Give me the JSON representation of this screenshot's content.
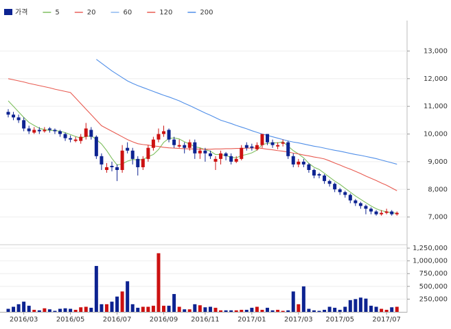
{
  "chart_data": {
    "type": "candlestick",
    "name": "가격",
    "up_color": "#cc1111",
    "down_color": "#0d2391",
    "legend": "top-left",
    "grid": true,
    "categories": [
      null,
      null,
      null,
      "2016/03",
      null,
      null,
      null,
      null,
      null,
      null,
      null,
      null,
      "2016/05",
      null,
      null,
      null,
      null,
      null,
      null,
      null,
      null,
      "2016/07",
      null,
      null,
      null,
      null,
      null,
      null,
      null,
      null,
      "2016/09",
      null,
      null,
      null,
      null,
      null,
      null,
      null,
      "2016/11",
      null,
      null,
      null,
      null,
      null,
      null,
      null,
      null,
      "2017/01",
      null,
      null,
      null,
      null,
      null,
      null,
      null,
      null,
      "2017/03",
      null,
      null,
      null,
      null,
      null,
      null,
      null,
      "2017/05",
      null,
      null,
      null,
      null,
      null,
      null,
      null,
      null,
      "2017/07",
      null,
      null
    ],
    "open": [
      10800,
      10700,
      10600,
      10500,
      10200,
      10050,
      10150,
      10100,
      10200,
      10150,
      10100,
      10000,
      9850,
      9750,
      9750,
      9900,
      10150,
      9900,
      9200,
      8700,
      8850,
      8800,
      8700,
      9500,
      9400,
      9100,
      8800,
      9100,
      9500,
      9800,
      10000,
      10150,
      9800,
      9550,
      9600,
      9500,
      9700,
      9300,
      9400,
      9300,
      9000,
      9100,
      9300,
      9200,
      9000,
      9100,
      9600,
      9550,
      9450,
      9600,
      10000,
      9700,
      9550,
      9650,
      9700,
      9200,
      8900,
      9000,
      8900,
      8700,
      8550,
      8500,
      8300,
      8200,
      8000,
      7900,
      7800,
      7600,
      7500,
      7400,
      7300,
      7200,
      7100,
      7150,
      7200,
      7100
    ],
    "high": [
      10900,
      10800,
      10700,
      10600,
      10300,
      10250,
      10250,
      10250,
      10250,
      10200,
      10150,
      10050,
      9950,
      9900,
      10000,
      10400,
      10250,
      9950,
      9300,
      8950,
      9000,
      8900,
      9600,
      9700,
      9500,
      9200,
      9200,
      9600,
      9900,
      10200,
      10300,
      10200,
      9900,
      9800,
      9700,
      9800,
      9800,
      9500,
      9500,
      9400,
      9200,
      9400,
      9350,
      9300,
      9200,
      9600,
      9700,
      9650,
      9700,
      10000,
      10000,
      9800,
      9700,
      9800,
      9750,
      9300,
      9100,
      9100,
      8950,
      8750,
      8600,
      8550,
      8350,
      8250,
      8050,
      7950,
      7850,
      7650,
      7550,
      7450,
      7350,
      7250,
      7250,
      7300,
      7250,
      7200
    ],
    "low": [
      10600,
      10500,
      10400,
      10100,
      10000,
      10000,
      10000,
      10050,
      10050,
      10000,
      9900,
      9750,
      9700,
      9700,
      9650,
      9800,
      9800,
      9100,
      8700,
      8600,
      8650,
      8300,
      8600,
      9300,
      8900,
      8500,
      8700,
      9000,
      9400,
      9700,
      9900,
      9700,
      9500,
      9500,
      9300,
      9400,
      9100,
      9100,
      9000,
      9100,
      8700,
      8900,
      9050,
      8900,
      8950,
      9050,
      9400,
      9400,
      9400,
      9500,
      9600,
      9500,
      9450,
      9550,
      9100,
      8800,
      8800,
      8800,
      8600,
      8400,
      8400,
      8200,
      8100,
      7900,
      7800,
      7700,
      7500,
      7400,
      7300,
      7100,
      7100,
      7050,
      7050,
      7100,
      7050,
      7050
    ],
    "close": [
      10700,
      10600,
      10500,
      10200,
      10100,
      10150,
      10100,
      10150,
      10150,
      10100,
      10000,
      9850,
      9800,
      9800,
      9900,
      10200,
      9900,
      9200,
      8900,
      8800,
      8800,
      8700,
      9400,
      9400,
      9100,
      8800,
      9100,
      9500,
      9800,
      10000,
      10100,
      9800,
      9600,
      9600,
      9500,
      9700,
      9300,
      9400,
      9300,
      9200,
      9100,
      9300,
      9200,
      9000,
      9100,
      9500,
      9500,
      9500,
      9600,
      10000,
      9700,
      9600,
      9600,
      9700,
      9200,
      8900,
      9000,
      8900,
      8700,
      8500,
      8500,
      8300,
      8200,
      8000,
      7900,
      7800,
      7600,
      7500,
      7400,
      7300,
      7200,
      7100,
      7150,
      7200,
      7100,
      7150
    ],
    "ylim": [
      6050,
      14100
    ],
    "yticks": [
      {
        "value": 7000,
        "label": "7,000"
      },
      {
        "value": 8000,
        "label": "8,000"
      },
      {
        "value": 9000,
        "label": "9,000"
      },
      {
        "value": 10000,
        "label": "10,000"
      },
      {
        "value": 11000,
        "label": "11,000"
      },
      {
        "value": 12000,
        "label": "12,000"
      },
      {
        "value": 13000,
        "label": "13,000"
      }
    ],
    "moving_averages": [
      {
        "name": "5",
        "color": "#7fbf5f",
        "values": [
          11200,
          11000,
          10800,
          10600,
          10420,
          10310,
          10210,
          10160,
          10130,
          10130,
          10100,
          10050,
          9980,
          9910,
          9850,
          9910,
          9940,
          9800,
          9640,
          9400,
          9120,
          8880,
          8920,
          9020,
          9080,
          9060,
          9080,
          9180,
          9260,
          9440,
          9700,
          9840,
          9860,
          9820,
          9720,
          9640,
          9540,
          9500,
          9440,
          9380,
          9260,
          9260,
          9220,
          9160,
          9140,
          9220,
          9260,
          9320,
          9420,
          9620,
          9660,
          9680,
          9680,
          9720,
          9560,
          9400,
          9280,
          9140,
          8940,
          8800,
          8720,
          8580,
          8440,
          8300,
          8180,
          8040,
          7900,
          7760,
          7640,
          7520,
          7400,
          7300,
          7230,
          7190,
          7150,
          7140
        ]
      },
      {
        "name": "20",
        "color": "#e8605a"
      },
      {
        "name": "60",
        "color": "#8ab8f0"
      },
      {
        "name": "120",
        "color": "#e85a50",
        "values": [
          12000,
          11960,
          11920,
          11880,
          11830,
          11790,
          11750,
          11710,
          11670,
          11620,
          11580,
          11540,
          11500,
          11300,
          11100,
          10900,
          10700,
          10500,
          10300,
          10200,
          10100,
          10000,
          9900,
          9800,
          9720,
          9650,
          9620,
          9600,
          9570,
          9550,
          9520,
          9500,
          9490,
          9480,
          9470,
          9460,
          9460,
          9450,
          9450,
          9450,
          9460,
          9460,
          9470,
          9470,
          9480,
          9480,
          9490,
          9490,
          9500,
          9480,
          9450,
          9430,
          9400,
          9380,
          9350,
          9310,
          9280,
          9240,
          9210,
          9170,
          9140,
          9100,
          9030,
          8950,
          8880,
          8800,
          8730,
          8650,
          8570,
          8480,
          8400,
          8320,
          8230,
          8150,
          8050,
          7950
        ]
      },
      {
        "name": "200",
        "color": "#4f8ee8",
        "values": [
          null,
          null,
          null,
          null,
          null,
          null,
          null,
          null,
          null,
          null,
          null,
          null,
          null,
          null,
          null,
          null,
          null,
          12700,
          12560,
          12420,
          12280,
          12160,
          12040,
          11920,
          11830,
          11750,
          11680,
          11610,
          11540,
          11470,
          11400,
          11340,
          11270,
          11200,
          11110,
          11030,
          10940,
          10850,
          10760,
          10680,
          10590,
          10500,
          10440,
          10380,
          10310,
          10250,
          10190,
          10120,
          10060,
          10000,
          9950,
          9900,
          9850,
          9800,
          9750,
          9710,
          9680,
          9640,
          9600,
          9560,
          9530,
          9490,
          9450,
          9410,
          9380,
          9340,
          9300,
          9260,
          9230,
          9190,
          9150,
          9110,
          9060,
          9010,
          8960,
          8910
        ]
      }
    ],
    "volume": {
      "values": [
        60000,
        100000,
        150000,
        200000,
        120000,
        40000,
        30000,
        70000,
        50000,
        20000,
        60000,
        70000,
        60000,
        40000,
        90000,
        100000,
        80000,
        900000,
        150000,
        150000,
        200000,
        300000,
        400000,
        600000,
        150000,
        80000,
        100000,
        100000,
        120000,
        1150000,
        120000,
        120000,
        350000,
        100000,
        50000,
        50000,
        150000,
        130000,
        90000,
        100000,
        80000,
        30000,
        30000,
        30000,
        30000,
        40000,
        40000,
        80000,
        100000,
        40000,
        80000,
        30000,
        40000,
        20000,
        30000,
        400000,
        150000,
        500000,
        60000,
        30000,
        20000,
        40000,
        100000,
        80000,
        40000,
        100000,
        230000,
        250000,
        280000,
        260000,
        120000,
        100000,
        60000,
        40000,
        90000,
        100000
      ],
      "ylim": [
        0,
        1250000
      ],
      "yticks": [
        {
          "value": 250000,
          "label": "250,000"
        },
        {
          "value": 500000,
          "label": "500,000"
        },
        {
          "value": 750000,
          "label": "750,000"
        },
        {
          "value": 1000000,
          "label": "1,000,000"
        },
        {
          "value": 1250000,
          "label": "1,250,000"
        }
      ]
    }
  }
}
